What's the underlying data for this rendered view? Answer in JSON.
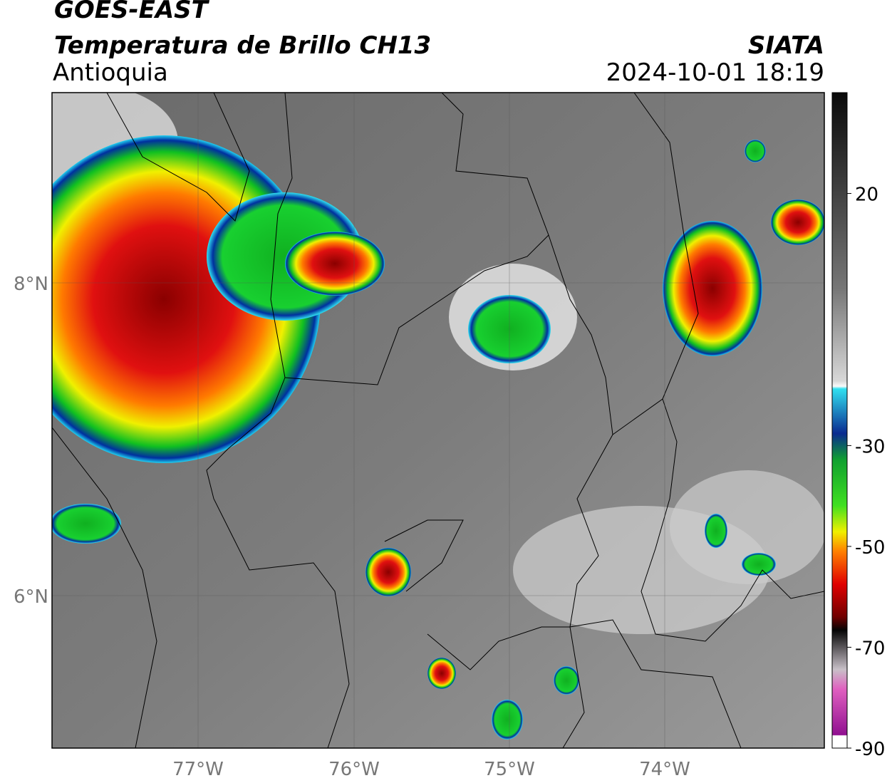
{
  "header": {
    "title": "GOES-EAST",
    "subtitle": "Temperatura de Brillo CH13",
    "region": "Antioquia",
    "agency": "SIATA",
    "datetime": "2024-10-01 18:19"
  },
  "map": {
    "lat_labels": [
      "8°N",
      "6°N"
    ],
    "lon_labels": [
      "77°W",
      "76°W",
      "75°W",
      "74°W"
    ]
  },
  "colorbar": {
    "ylim": [
      -90,
      40
    ],
    "yticks": [
      20,
      -30,
      -50,
      -70,
      -90
    ]
  }
}
